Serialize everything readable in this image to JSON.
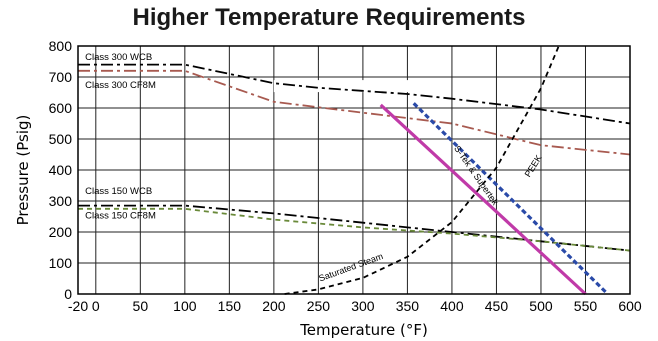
{
  "chart_data": {
    "type": "line",
    "title": "Higher Temperature Requirements",
    "xlabel": "Temperature (°F)",
    "ylabel": "Pressure (Psig)",
    "xlim": [
      -20,
      600
    ],
    "ylim": [
      0,
      800
    ],
    "x_ticks": [
      "-20",
      "0",
      "50",
      "100",
      "150",
      "200",
      "250",
      "300",
      "350",
      "400",
      "450",
      "500",
      "550",
      "600"
    ],
    "x_tick_values": [
      -20,
      0,
      50,
      100,
      150,
      200,
      250,
      300,
      350,
      400,
      450,
      500,
      550,
      600
    ],
    "y_ticks": [
      "0",
      "100",
      "200",
      "300",
      "400",
      "500",
      "600",
      "700",
      "800"
    ],
    "y_tick_values": [
      0,
      100,
      200,
      300,
      400,
      500,
      600,
      700,
      800
    ],
    "grid": true,
    "series": [
      {
        "name": "Class 300 WCB",
        "color": "#000000",
        "style": "dashdot",
        "points": [
          [
            -20,
            740
          ],
          [
            100,
            740
          ],
          [
            200,
            680
          ],
          [
            250,
            665
          ],
          [
            350,
            645
          ],
          [
            400,
            630
          ],
          [
            500,
            595
          ],
          [
            600,
            550
          ]
        ]
      },
      {
        "name": "Class 300 CF8M",
        "color": "#a85a50",
        "style": "dashdot",
        "points": [
          [
            -20,
            720
          ],
          [
            100,
            720
          ],
          [
            200,
            620
          ],
          [
            300,
            585
          ],
          [
            400,
            550
          ],
          [
            500,
            480
          ],
          [
            600,
            450
          ]
        ]
      },
      {
        "name": "Class 150 WCB",
        "color": "#000000",
        "style": "dashdot",
        "points": [
          [
            -20,
            285
          ],
          [
            100,
            285
          ],
          [
            200,
            260
          ],
          [
            300,
            230
          ],
          [
            400,
            200
          ],
          [
            500,
            170
          ],
          [
            600,
            140
          ]
        ]
      },
      {
        "name": "Class 150 CF8M",
        "color": "#6a8a3a",
        "style": "dashed",
        "points": [
          [
            -20,
            275
          ],
          [
            100,
            275
          ],
          [
            200,
            240
          ],
          [
            300,
            215
          ],
          [
            400,
            195
          ],
          [
            500,
            170
          ],
          [
            600,
            140
          ]
        ]
      },
      {
        "name": "S-Tek & Supertek",
        "color": "#c03aa8",
        "style": "solid",
        "points": [
          [
            320,
            610
          ],
          [
            550,
            0
          ]
        ]
      },
      {
        "name": "PEEK",
        "color": "#2a4aa8",
        "style": "dotted",
        "points": [
          [
            357,
            615
          ],
          [
            575,
            0
          ]
        ]
      },
      {
        "name": "Saturated Steam",
        "color": "#000000",
        "style": "dashed",
        "points": [
          [
            212,
            0
          ],
          [
            250,
            15
          ],
          [
            300,
            52
          ],
          [
            350,
            120
          ],
          [
            400,
            232
          ],
          [
            450,
            408
          ],
          [
            500,
            664
          ],
          [
            520,
            800
          ]
        ]
      }
    ],
    "class_labels": [
      "Class 300 WCB",
      "Class 300 CF8M",
      "Class 150 WCB",
      "Class 150 CF8M"
    ],
    "curve_labels": [
      "S-Tek & Supertek",
      "PEEK",
      "Saturated Steam"
    ]
  }
}
